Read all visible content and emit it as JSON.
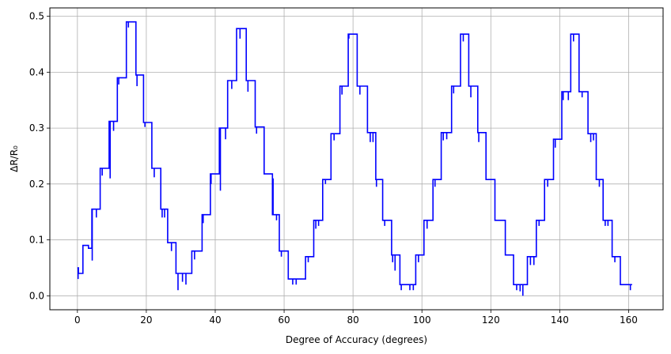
{
  "chart_data": {
    "type": "line",
    "xlabel": "Degree of Accuracy (degrees)",
    "ylabel": "ΔR/R₀",
    "xlim": [
      -8,
      170
    ],
    "ylim": [
      -0.025,
      0.515
    ],
    "grid": true,
    "x_ticks": [
      0,
      20,
      40,
      60,
      80,
      100,
      120,
      140,
      160
    ],
    "y_ticks": [
      0.0,
      0.1,
      0.2,
      0.3,
      0.4,
      0.5
    ],
    "x_tick_labels": [
      "0",
      "20",
      "40",
      "60",
      "80",
      "100",
      "120",
      "140",
      "160"
    ],
    "y_tick_labels": [
      "0.0",
      "0.1",
      "0.2",
      "0.3",
      "0.4",
      "0.5"
    ],
    "series": [
      {
        "color": "#0000ff",
        "steps": [
          [
            0,
            0.05
          ],
          [
            0.3,
            0.04
          ],
          [
            1.5,
            0.04
          ],
          [
            1.6,
            0.09
          ],
          [
            3,
            0.09
          ],
          [
            3.2,
            0.085
          ],
          [
            4,
            0.085
          ],
          [
            4.2,
            0.155
          ],
          [
            6.5,
            0.155
          ],
          [
            6.6,
            0.228
          ],
          [
            9,
            0.228
          ],
          [
            9.2,
            0.312
          ],
          [
            11.5,
            0.312
          ],
          [
            11.6,
            0.39
          ],
          [
            14,
            0.39
          ],
          [
            14.2,
            0.49
          ],
          [
            16.8,
            0.49
          ],
          [
            17,
            0.395
          ],
          [
            19,
            0.395
          ],
          [
            19.2,
            0.31
          ],
          [
            21.5,
            0.31
          ],
          [
            21.6,
            0.228
          ],
          [
            24,
            0.228
          ],
          [
            24.2,
            0.155
          ],
          [
            26,
            0.155
          ],
          [
            26.2,
            0.095
          ],
          [
            28.5,
            0.095
          ],
          [
            28.6,
            0.04
          ],
          [
            33,
            0.04
          ],
          [
            33.2,
            0.08
          ],
          [
            36,
            0.08
          ],
          [
            36.2,
            0.145
          ],
          [
            38.5,
            0.145
          ],
          [
            38.6,
            0.218
          ],
          [
            41,
            0.218
          ],
          [
            41.2,
            0.3
          ],
          [
            43.5,
            0.3
          ],
          [
            43.6,
            0.385
          ],
          [
            46,
            0.385
          ],
          [
            46.2,
            0.478
          ],
          [
            48.8,
            0.478
          ],
          [
            49,
            0.385
          ],
          [
            51.5,
            0.385
          ],
          [
            51.6,
            0.302
          ],
          [
            54,
            0.302
          ],
          [
            54.2,
            0.218
          ],
          [
            56.5,
            0.218
          ],
          [
            56.6,
            0.145
          ],
          [
            58.5,
            0.145
          ],
          [
            58.6,
            0.08
          ],
          [
            61,
            0.08
          ],
          [
            61.2,
            0.03
          ],
          [
            66,
            0.03
          ],
          [
            66.2,
            0.07
          ],
          [
            68.5,
            0.07
          ],
          [
            68.6,
            0.135
          ],
          [
            71,
            0.135
          ],
          [
            71.2,
            0.208
          ],
          [
            73.5,
            0.208
          ],
          [
            73.6,
            0.29
          ],
          [
            76,
            0.29
          ],
          [
            76.2,
            0.375
          ],
          [
            78.5,
            0.375
          ],
          [
            78.6,
            0.468
          ],
          [
            81,
            0.468
          ],
          [
            81.2,
            0.375
          ],
          [
            84,
            0.375
          ],
          [
            84.2,
            0.292
          ],
          [
            86.5,
            0.292
          ],
          [
            86.6,
            0.208
          ],
          [
            88.5,
            0.208
          ],
          [
            88.6,
            0.135
          ],
          [
            91,
            0.135
          ],
          [
            91.2,
            0.073
          ],
          [
            93.5,
            0.073
          ],
          [
            93.6,
            0.02
          ],
          [
            98,
            0.02
          ],
          [
            98.2,
            0.073
          ],
          [
            100.5,
            0.073
          ],
          [
            100.6,
            0.135
          ],
          [
            103,
            0.135
          ],
          [
            103.2,
            0.208
          ],
          [
            105.5,
            0.208
          ],
          [
            105.6,
            0.292
          ],
          [
            108.5,
            0.292
          ],
          [
            108.6,
            0.375
          ],
          [
            111,
            0.375
          ],
          [
            111.2,
            0.468
          ],
          [
            113.5,
            0.468
          ],
          [
            113.6,
            0.375
          ],
          [
            116,
            0.375
          ],
          [
            116.2,
            0.292
          ],
          [
            118.5,
            0.292
          ],
          [
            118.6,
            0.208
          ],
          [
            121,
            0.208
          ],
          [
            121.2,
            0.135
          ],
          [
            124,
            0.135
          ],
          [
            124.2,
            0.073
          ],
          [
            126.5,
            0.073
          ],
          [
            126.6,
            0.02
          ],
          [
            130.5,
            0.02
          ],
          [
            130.6,
            0.07
          ],
          [
            133,
            0.07
          ],
          [
            133.2,
            0.135
          ],
          [
            135.5,
            0.135
          ],
          [
            135.6,
            0.208
          ],
          [
            138,
            0.208
          ],
          [
            138.2,
            0.28
          ],
          [
            140.5,
            0.28
          ],
          [
            140.6,
            0.365
          ],
          [
            143,
            0.365
          ],
          [
            143.2,
            0.468
          ],
          [
            145.5,
            0.468
          ],
          [
            145.6,
            0.365
          ],
          [
            148,
            0.365
          ],
          [
            148.2,
            0.29
          ],
          [
            150.5,
            0.29
          ],
          [
            150.6,
            0.208
          ],
          [
            152.5,
            0.208
          ],
          [
            152.6,
            0.135
          ],
          [
            155,
            0.135
          ],
          [
            155.2,
            0.07
          ],
          [
            157.5,
            0.07
          ],
          [
            157.6,
            0.02
          ],
          [
            161,
            0.02
          ]
        ],
        "spikes": [
          [
            0.2,
            0.03
          ],
          [
            4.3,
            0.063
          ],
          [
            5.5,
            0.14
          ],
          [
            7.2,
            0.215
          ],
          [
            9.5,
            0.21
          ],
          [
            10.5,
            0.295
          ],
          [
            12,
            0.378
          ],
          [
            14.8,
            0.48
          ],
          [
            17.3,
            0.375
          ],
          [
            19.6,
            0.302
          ],
          [
            22.3,
            0.212
          ],
          [
            24.6,
            0.14
          ],
          [
            25.3,
            0.14
          ],
          [
            27.3,
            0.08
          ],
          [
            29.2,
            0.01
          ],
          [
            30.5,
            0.025
          ],
          [
            31.5,
            0.02
          ],
          [
            34,
            0.065
          ],
          [
            36.5,
            0.13
          ],
          [
            38.8,
            0.2
          ],
          [
            41.5,
            0.188
          ],
          [
            43,
            0.28
          ],
          [
            44.8,
            0.37
          ],
          [
            47.2,
            0.46
          ],
          [
            49.5,
            0.365
          ],
          [
            52,
            0.29
          ],
          [
            56.8,
            0.21
          ],
          [
            57.8,
            0.135
          ],
          [
            59.2,
            0.07
          ],
          [
            62.5,
            0.02
          ],
          [
            63.5,
            0.02
          ],
          [
            67,
            0.06
          ],
          [
            69.2,
            0.12
          ],
          [
            70,
            0.125
          ],
          [
            72,
            0.2
          ],
          [
            74.5,
            0.278
          ],
          [
            76.8,
            0.36
          ],
          [
            78.8,
            0.46
          ],
          [
            82,
            0.36
          ],
          [
            85,
            0.275
          ],
          [
            85.8,
            0.275
          ],
          [
            86.8,
            0.195
          ],
          [
            89.2,
            0.125
          ],
          [
            91.5,
            0.06
          ],
          [
            92.2,
            0.045
          ],
          [
            94,
            0.01
          ],
          [
            96.5,
            0.01
          ],
          [
            97.5,
            0.01
          ],
          [
            99,
            0.06
          ],
          [
            101.5,
            0.12
          ],
          [
            103.8,
            0.195
          ],
          [
            106.2,
            0.278
          ],
          [
            107.2,
            0.28
          ],
          [
            109.2,
            0.362
          ],
          [
            112,
            0.455
          ],
          [
            114.2,
            0.355
          ],
          [
            116.5,
            0.275
          ],
          [
            127.5,
            0.01
          ],
          [
            128.5,
            0.008
          ],
          [
            129.3,
            0.0
          ],
          [
            131.5,
            0.055
          ],
          [
            132.5,
            0.055
          ],
          [
            134,
            0.125
          ],
          [
            136.5,
            0.195
          ],
          [
            138.7,
            0.265
          ],
          [
            141,
            0.35
          ],
          [
            142.5,
            0.35
          ],
          [
            144,
            0.455
          ],
          [
            146.5,
            0.355
          ],
          [
            149,
            0.275
          ],
          [
            149.8,
            0.278
          ],
          [
            151.5,
            0.195
          ],
          [
            153.2,
            0.125
          ],
          [
            154,
            0.125
          ],
          [
            156,
            0.06
          ],
          [
            160.5,
            0.01
          ]
        ]
      }
    ]
  }
}
